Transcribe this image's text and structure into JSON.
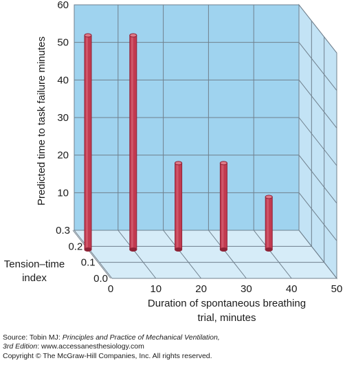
{
  "chart_data": {
    "type": "bar",
    "subtype": "3d-cylinder",
    "title": "",
    "ylabel": "Predicted time to task failure minutes",
    "xlabel_line1": "Duration of spontaneous breathing",
    "xlabel_line2": "trial, minutes",
    "zlabel_line1": "Tension–time",
    "zlabel_line2": "index",
    "ylim": [
      0,
      60
    ],
    "xlim": [
      0,
      50
    ],
    "y_ticks": [
      "10",
      "20",
      "30",
      "40",
      "50",
      "60"
    ],
    "x_ticks": [
      "0",
      "10",
      "20",
      "30",
      "40",
      "50"
    ],
    "z_ticks": [
      "0.0",
      "0.1",
      "0.2",
      "0.3"
    ],
    "grid": true,
    "colors": {
      "wall": "#9fd3ef",
      "floor": "#d6ecf8",
      "side_wall": "#c3e3f5",
      "grid": "#6f7f8c",
      "bar": "#c23a50",
      "bar_dark": "#8f2236",
      "bar_top": "#e07a88"
    },
    "bars": [
      {
        "x": 0,
        "z": 0.18,
        "value": 57
      },
      {
        "x": 10,
        "z": 0.18,
        "value": 57
      },
      {
        "x": 20,
        "z": 0.18,
        "value": 23
      },
      {
        "x": 30,
        "z": 0.18,
        "value": 23
      },
      {
        "x": 40,
        "z": 0.18,
        "value": 14
      }
    ]
  },
  "caption": {
    "line1_prefix": "Source: Tobin MJ: ",
    "line1_italic": "Principles and Practice of Mechanical Ventilation,",
    "line2_italic": "3rd Edition",
    "line2_rest": ": www.accessanesthesiology.com",
    "line3": "Copyright © The McGraw-Hill Companies, Inc. All rights reserved."
  }
}
